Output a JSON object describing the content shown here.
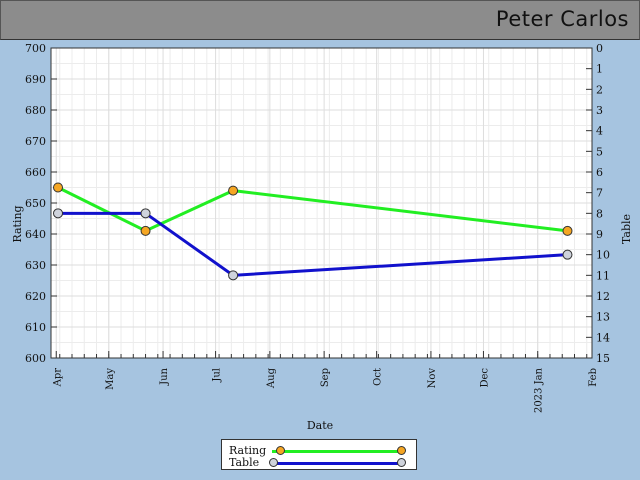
{
  "header": {
    "title": "Peter Carlos"
  },
  "colors": {
    "rating_line": "#22ee22",
    "table_line": "#1111cc",
    "rating_marker": "#f5a623",
    "table_marker": "#cfd3dc",
    "plot_bg": "#ffffff",
    "grid": "#dddddd",
    "page_bg": "#a6c4e0"
  },
  "chart_data": {
    "type": "line",
    "xlabel": "Date",
    "ylabel": "Rating",
    "y2label": "Table",
    "ylim": [
      600,
      700
    ],
    "y2lim": [
      0,
      15
    ],
    "y2_inverted": true,
    "grid": true,
    "legend_position": "bottom-center",
    "x_ticks": [
      {
        "date": "2022-04-01",
        "label": "Apr"
      },
      {
        "date": "2022-05-01",
        "label": "May"
      },
      {
        "date": "2022-06-01",
        "label": "Jun"
      },
      {
        "date": "2022-07-01",
        "label": "Jul"
      },
      {
        "date": "2022-08-01",
        "label": "Aug"
      },
      {
        "date": "2022-09-01",
        "label": "Sep"
      },
      {
        "date": "2022-10-01",
        "label": "Oct"
      },
      {
        "date": "2022-11-01",
        "label": "Nov"
      },
      {
        "date": "2022-12-01",
        "label": "Dec"
      },
      {
        "date": "2023-01-01",
        "label": "2023 Jan"
      },
      {
        "date": "2023-02-01",
        "label": "Feb"
      }
    ],
    "xlim": [
      "2022-03-29",
      "2023-02-01"
    ],
    "y_ticks": [
      600,
      610,
      620,
      630,
      640,
      650,
      660,
      670,
      680,
      690,
      700
    ],
    "y2_ticks": [
      0,
      1,
      2,
      3,
      4,
      5,
      6,
      7,
      8,
      9,
      10,
      11,
      12,
      13,
      14,
      15
    ],
    "series": [
      {
        "name": "Rating",
        "axis": "left",
        "points": [
          {
            "x": "2022-04-02",
            "y": 655
          },
          {
            "x": "2022-05-22",
            "y": 641
          },
          {
            "x": "2022-07-11",
            "y": 654
          },
          {
            "x": "2023-01-18",
            "y": 641
          }
        ]
      },
      {
        "name": "Table",
        "axis": "right",
        "points": [
          {
            "x": "2022-04-02",
            "y": 8
          },
          {
            "x": "2022-05-22",
            "y": 8
          },
          {
            "x": "2022-07-11",
            "y": 11
          },
          {
            "x": "2023-01-18",
            "y": 10
          }
        ]
      }
    ]
  }
}
